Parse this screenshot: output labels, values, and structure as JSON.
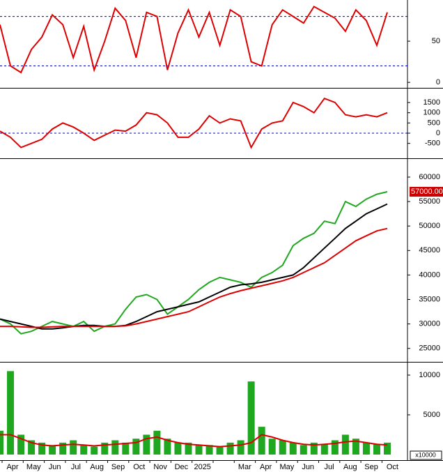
{
  "chart_data": [
    {
      "type": "line",
      "ylim": [
        -5.8,
        98.3
      ],
      "yticks": [
        0,
        50
      ],
      "levels": [
        20,
        80
      ],
      "series": [
        {
          "color": "#dd0000",
          "values": [
            70,
            20,
            12,
            40,
            55,
            82,
            70,
            30,
            68,
            15,
            50,
            90,
            75,
            30,
            85,
            80,
            15,
            60,
            88,
            55,
            85,
            45,
            88,
            80,
            25,
            20,
            70,
            88,
            80,
            72,
            92,
            85,
            78,
            62,
            88,
            75,
            45,
            85
          ]
        }
      ]
    },
    {
      "type": "line",
      "ylim": [
        -1160,
        2150
      ],
      "yticks": [
        -500,
        0,
        500,
        1000,
        1500
      ],
      "levels": [
        0
      ],
      "series": [
        {
          "color": "#dd0000",
          "values": [
            100,
            -200,
            -700,
            -500,
            -300,
            200,
            500,
            300,
            0,
            -350,
            -100,
            150,
            100,
            400,
            1000,
            900,
            500,
            -200,
            -200,
            200,
            850,
            500,
            700,
            600,
            -700,
            200,
            500,
            600,
            1500,
            1300,
            1000,
            1700,
            1500,
            900,
            800,
            900,
            800,
            1000
          ]
        }
      ]
    },
    {
      "type": "line",
      "ylim": [
        22400,
        63700
      ],
      "yticks": [
        25000,
        30000,
        35000,
        40000,
        45000,
        50000,
        55000,
        60000
      ],
      "last": {
        "value": 57000,
        "label": "57000.00"
      },
      "series": [
        {
          "color": "#1fa81f",
          "values": [
            31000,
            30000,
            28000,
            28500,
            29500,
            30500,
            30000,
            29500,
            30500,
            28500,
            29500,
            30000,
            33000,
            35500,
            36000,
            35000,
            32000,
            33500,
            35000,
            37000,
            38500,
            39500,
            39000,
            38500,
            37500,
            39500,
            40500,
            42000,
            46000,
            47500,
            48500,
            51000,
            50500,
            55000,
            54000,
            55500,
            56500,
            57000
          ]
        },
        {
          "color": "#000000",
          "values": [
            31000,
            30500,
            30000,
            29500,
            29000,
            29000,
            29200,
            29500,
            29700,
            29700,
            29500,
            29500,
            29700,
            30500,
            31500,
            32500,
            33000,
            33500,
            34000,
            34500,
            35500,
            36500,
            37500,
            38000,
            38200,
            38500,
            39000,
            39500,
            40000,
            41500,
            43500,
            45500,
            47500,
            49500,
            51000,
            52500,
            53500,
            54500
          ]
        },
        {
          "color": "#dd0000",
          "values": [
            29500,
            29500,
            29400,
            29300,
            29300,
            29400,
            29500,
            29500,
            29500,
            29500,
            29500,
            29500,
            29600,
            30000,
            30500,
            31000,
            31500,
            32000,
            32500,
            33500,
            34500,
            35500,
            36200,
            36800,
            37300,
            37800,
            38300,
            38800,
            39500,
            40500,
            41500,
            42500,
            44000,
            45500,
            47000,
            48000,
            49000,
            49500
          ]
        }
      ]
    },
    {
      "type": "bar",
      "ylim": [
        0,
        11580
      ],
      "yticks": [
        5000,
        10000
      ],
      "unit_label": "x10000",
      "series": [
        {
          "color": "#1fa81f",
          "values": [
            3000,
            10500,
            2500,
            1800,
            1500,
            1200,
            1500,
            1800,
            1200,
            1000,
            1500,
            1800,
            1500,
            2000,
            2500,
            3000,
            2000,
            1500,
            1500,
            1200,
            1200,
            1000,
            1500,
            1800,
            9200,
            3500,
            2000,
            1800,
            1500,
            1200,
            1500,
            1300,
            1800,
            2500,
            2000,
            1500,
            1300,
            1500
          ]
        },
        {
          "color": "#dd0000",
          "values": [
            2500,
            2500,
            2000,
            1500,
            1200,
            1100,
            1200,
            1300,
            1200,
            1100,
            1200,
            1300,
            1400,
            1500,
            2000,
            2200,
            1800,
            1500,
            1300,
            1200,
            1100,
            1000,
            1100,
            1200,
            1500,
            2500,
            2200,
            1800,
            1500,
            1300,
            1200,
            1300,
            1400,
            1600,
            1700,
            1500,
            1300,
            1200
          ]
        }
      ]
    }
  ],
  "x_axis": {
    "categories": [
      "Apr",
      "May",
      "Jun",
      "Jul",
      "Aug",
      "Sep",
      "Oct",
      "Nov",
      "Dec",
      "2025",
      null,
      "Mar",
      "Apr",
      "May",
      "Jun",
      "Jul",
      "Aug",
      "Sep",
      "Oct"
    ]
  }
}
